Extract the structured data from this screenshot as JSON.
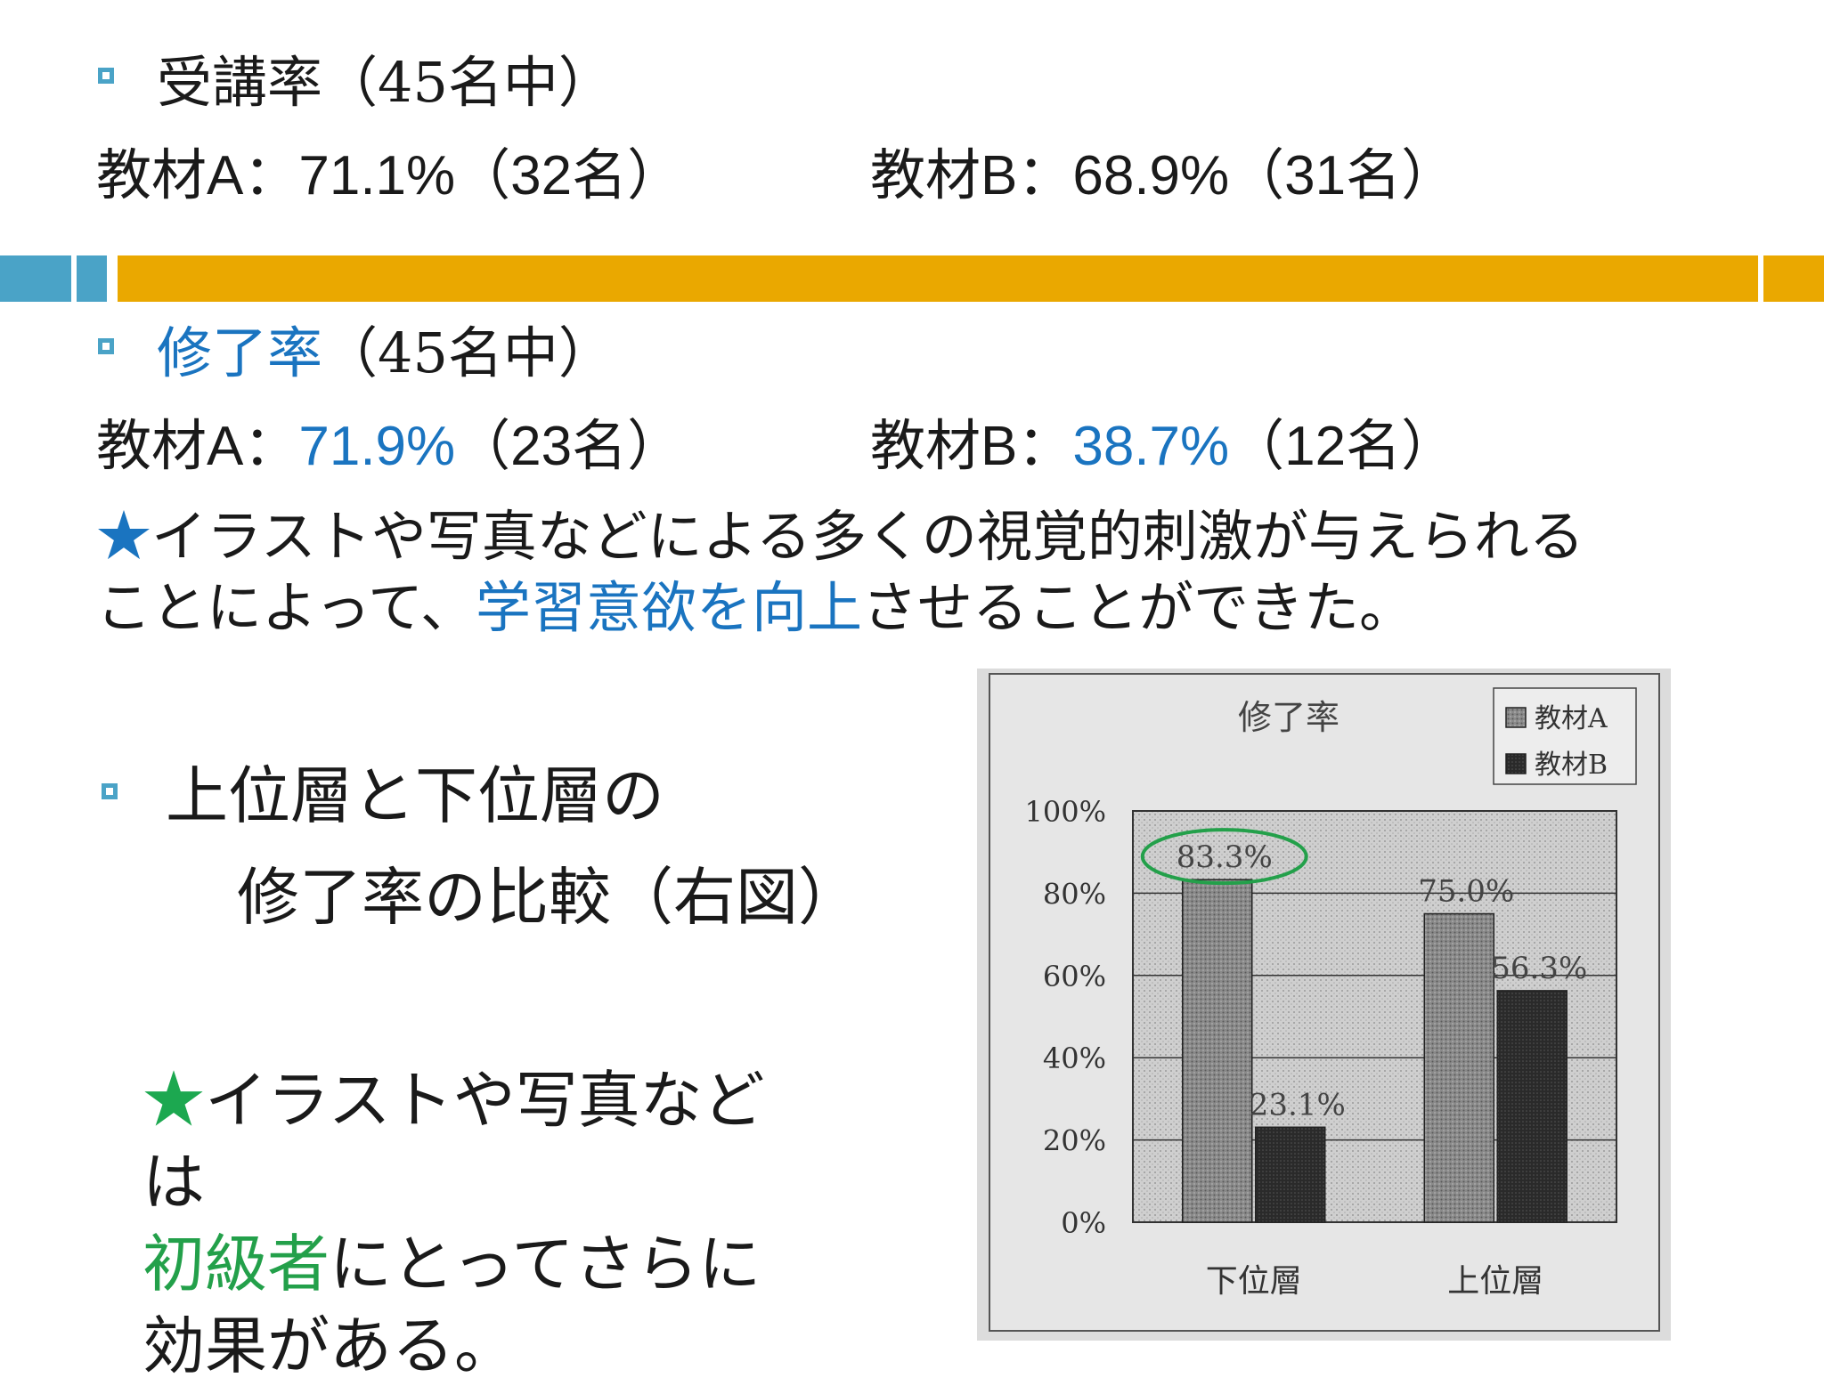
{
  "section1": {
    "title": "受講率（45名中）",
    "rowA": {
      "label": "教材A：",
      "value": "71.1%",
      "count": "（32名）"
    },
    "rowB": {
      "label": "教材B：",
      "value": "68.9%",
      "count": "（31名）"
    }
  },
  "section2": {
    "title_blue": "修了率",
    "title_rest": "（45名中）",
    "rowA": {
      "label": "教材A：",
      "value": "71.9%",
      "count": "（23名）"
    },
    "rowB": {
      "label": "教材B：",
      "value": "38.7%",
      "count": "（12名）"
    },
    "note_star": "★",
    "note_line1": "イラストや写真などによる多くの視覚的刺激が与えられる",
    "note_line2_pre": "ことによって、",
    "note_line2_blue": "学習意欲を向上",
    "note_line2_post": "させることができた。"
  },
  "section3": {
    "title_line1": "上位層と下位層の",
    "title_line2": "修了率の比較（右図）",
    "note_star": "★",
    "note_line1": "イラストや写真など",
    "note_line2": "は",
    "note_line3_green": "初級者",
    "note_line3_rest": "にとってさらに",
    "note_line4": "効果がある。"
  },
  "colors": {
    "accent_blue": "#1a74c0",
    "accent_green": "#23a04a",
    "bar_orange": "#eaa800",
    "bar_teal": "#4aa3c7"
  },
  "chart_data": {
    "type": "bar",
    "title": "修了率",
    "categories": [
      "下位層",
      "上位層"
    ],
    "series": [
      {
        "name": "教材A",
        "values": [
          83.3,
          75.0
        ],
        "labels": [
          "83.3%",
          "75.0%"
        ]
      },
      {
        "name": "教材B",
        "values": [
          23.1,
          56.3
        ],
        "labels": [
          "23.1%",
          "56.3%"
        ]
      }
    ],
    "ylim": [
      0,
      100
    ],
    "yticks": [
      "0%",
      "20%",
      "40%",
      "60%",
      "80%",
      "100%"
    ],
    "ytick_values": [
      0,
      20,
      40,
      60,
      80,
      100
    ],
    "grid": true,
    "legend": "top-right",
    "highlight": "83.3%"
  }
}
